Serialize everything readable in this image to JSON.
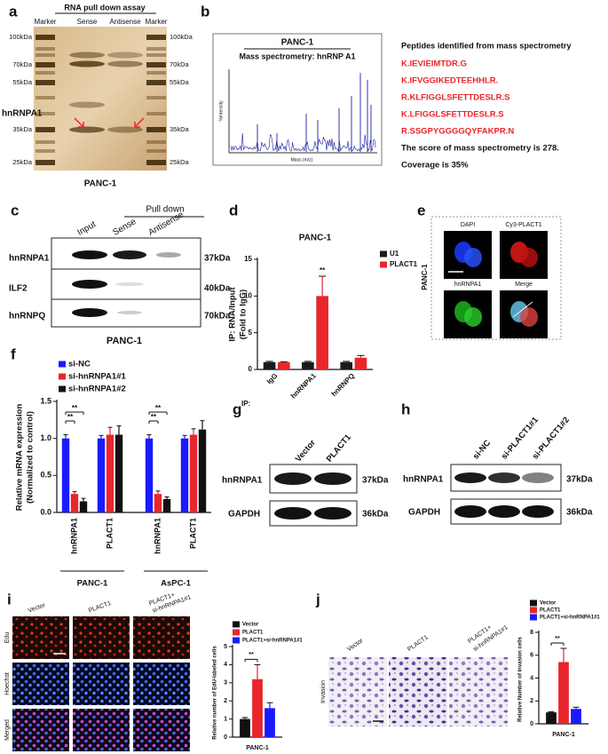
{
  "panel_labels": [
    "a",
    "b",
    "c",
    "d",
    "e",
    "f",
    "g",
    "h",
    "i",
    "j"
  ],
  "panel_a": {
    "title": "RNA pull down assay",
    "lanes": [
      "Marker",
      "Sense",
      "Antisense",
      "Marker"
    ],
    "markers_left": [
      "100kDa",
      "70kDa",
      "55kDa",
      "35kDa",
      "25kDa"
    ],
    "markers_right": [
      "100kDa",
      "70kDa",
      "55kDa",
      "35kDa",
      "25kDa"
    ],
    "protein": "hnRNPA1",
    "cell_line": "PANC-1"
  },
  "panel_b": {
    "spectrum_title": "PANC-1",
    "spectrum_subtitle": "Mass spectrometry: hnRNP A1",
    "y_axis": "%Intensity",
    "x_axis": "Mass (m/z)",
    "peptides_title": "Peptides identified from mass spectrometry",
    "peptides": [
      "K.IEVIEIMTDR.G",
      "K.IFVGGIKEDTEEHHLR.",
      "R.KLFIGGLSFETTDESLR.S",
      "K.LFIGGLSFETTDESLR.S",
      "R.SSGPYGGGGQYFAKPR.N"
    ],
    "score": "The score of mass spectrometry is 278.",
    "coverage": "Coverage is 35%"
  },
  "panel_c": {
    "pull_down": "Pull down",
    "lanes": [
      "Input",
      "Sense",
      "Antisense"
    ],
    "rows": [
      {
        "protein": "hnRNPA1",
        "size": "37kDa"
      },
      {
        "protein": "ILF2",
        "size": "40kDa"
      },
      {
        "protein": "hnRNPQ",
        "size": "70kDa"
      }
    ],
    "cell_line": "PANC-1"
  },
  "panel_e": {
    "channels": [
      "DAPI",
      "Cy3-PLACT1",
      "hnRNPA1",
      "Merge"
    ],
    "cell_line": "PANC-1"
  },
  "panel_g": {
    "lanes": [
      "Vector",
      "PLACT1"
    ],
    "rows": [
      {
        "protein": "hnRNPA1",
        "size": "37kDa"
      },
      {
        "protein": "GAPDH",
        "size": "36kDa"
      }
    ]
  },
  "panel_h": {
    "lanes": [
      "si-NC",
      "si-PLACT1#1",
      "si-PLACT1#2"
    ],
    "rows": [
      {
        "protein": "hnRNPA1",
        "size": "37kDa"
      },
      {
        "protein": "GAPDH",
        "size": "36kDa"
      }
    ]
  },
  "panel_i": {
    "rows": [
      "Edu",
      "Hoechst",
      "Merged"
    ],
    "columns": [
      [
        "Vector"
      ],
      [
        "PLACT1"
      ],
      [
        "PLACT1+",
        "si-hnRNPA1#1"
      ]
    ]
  },
  "panel_j": {
    "row": "Invasion",
    "columns": [
      [
        "Vector"
      ],
      [
        "PLACT1"
      ],
      [
        "PLACT1+",
        "si-hnRNPA1#1"
      ]
    ]
  },
  "chart_data": [
    {
      "type": "bar",
      "title": "PANC-1",
      "y_label": [
        "IP: RNA/Input",
        "(Fold to IgG)"
      ],
      "x_label": "IP:",
      "categories": [
        "IgG",
        "hnRNPA1",
        "hnRNPQ"
      ],
      "series": [
        {
          "name": "U1",
          "color": "#1a1a1a",
          "values": [
            1,
            1,
            1
          ],
          "errors": [
            0.1,
            0.1,
            0.1
          ]
        },
        {
          "name": "PLACT1",
          "color": "#e8262b",
          "values": [
            1,
            10,
            1.6
          ],
          "errors": [
            0.05,
            2.7,
            0.3
          ]
        }
      ],
      "ylim": [
        0,
        15
      ],
      "yticks": [
        0,
        5,
        10,
        15
      ],
      "legend": "upper right",
      "annotations": [
        "**"
      ]
    },
    {
      "type": "bar",
      "y_label": [
        "Relative mRNA expression",
        "(Normalized to control)"
      ],
      "categories": [
        "hnRNPA1",
        "PLACT1",
        "hnRNPA1",
        "PLACT1"
      ],
      "groups": [
        "PANC-1",
        "AsPC-1"
      ],
      "series": [
        {
          "name": "si-NC",
          "color": "#1a1aff",
          "values": [
            1,
            1,
            1,
            1
          ],
          "errors": [
            0.05,
            0.04,
            0.05,
            0.04
          ]
        },
        {
          "name": "si-hnRNPA1#1",
          "color": "#e8262b",
          "values": [
            0.25,
            1.05,
            0.25,
            1.05
          ],
          "errors": [
            0.03,
            0.1,
            0.04,
            0.08
          ]
        },
        {
          "name": "si-hnRNPA1#2",
          "color": "#111111",
          "values": [
            0.15,
            1.05,
            0.18,
            1.12
          ],
          "errors": [
            0.04,
            0.12,
            0.03,
            0.12
          ]
        }
      ],
      "ylim": [
        0,
        1.5
      ],
      "yticks": [
        {
          "value": 0,
          "label": "0.0"
        },
        0.5,
        {
          "value": 1,
          "label": "1.0"
        },
        1.5
      ],
      "legend": "upper left",
      "annotations": [
        "**",
        "**",
        "**",
        "**"
      ]
    },
    {
      "type": "bar",
      "y_label": [
        "Relative number of EdU-labeled cells"
      ],
      "categories": [
        "PANC-1"
      ],
      "series": [
        {
          "name": "Vector",
          "color": "#111111",
          "values": [
            1
          ],
          "errors": [
            0.08
          ]
        },
        {
          "name": "PLACT1",
          "color": "#e8262b",
          "values": [
            3.2
          ],
          "errors": [
            0.8
          ]
        },
        {
          "name": "PLACT1+si-hnRNPA1#1",
          "color": "#1a1aff",
          "values": [
            1.6
          ],
          "errors": [
            0.3
          ]
        }
      ],
      "ylim": [
        0,
        5
      ],
      "yticks": [
        0,
        1,
        2,
        3,
        4,
        5
      ],
      "legend": "upper left",
      "annotations": [
        "**"
      ]
    },
    {
      "type": "bar",
      "y_label": [
        "Relative Number of invasion cells"
      ],
      "categories": [
        "PANC-1"
      ],
      "series": [
        {
          "name": "Vector",
          "color": "#111111",
          "values": [
            1
          ],
          "errors": [
            0.05
          ]
        },
        {
          "name": "PLACT1",
          "color": "#e8262b",
          "values": [
            5.4
          ],
          "errors": [
            1.2
          ]
        },
        {
          "name": "PLACT1+si-hnRNPA1#1",
          "color": "#1a1aff",
          "values": [
            1.3
          ],
          "errors": [
            0.15
          ]
        }
      ],
      "ylim": [
        0,
        8
      ],
      "yticks": [
        0,
        2,
        4,
        6,
        8
      ],
      "legend": "upper left",
      "annotations": [
        "**"
      ]
    }
  ]
}
